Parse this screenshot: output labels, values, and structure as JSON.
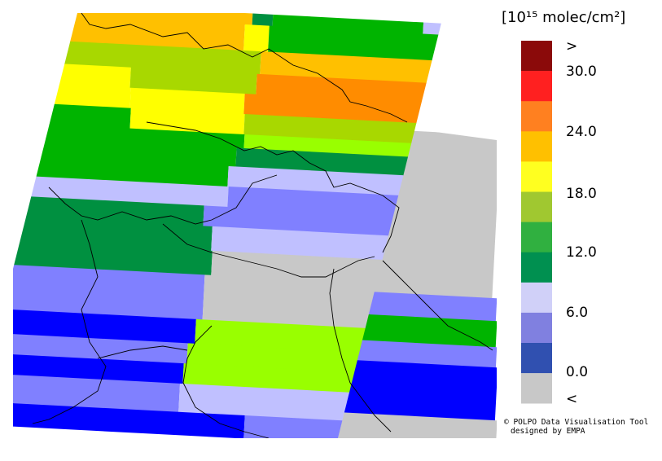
{
  "legend": {
    "unit": "[10¹⁵ molec/cm²]",
    "labels": [
      ">",
      "30.0",
      "24.0",
      "18.0",
      "12.0",
      "6.0",
      "0.0",
      "<"
    ]
  },
  "credits": [
    "© POLPO Data Visualisation Tool",
    "designed by EMPA"
  ]
}
